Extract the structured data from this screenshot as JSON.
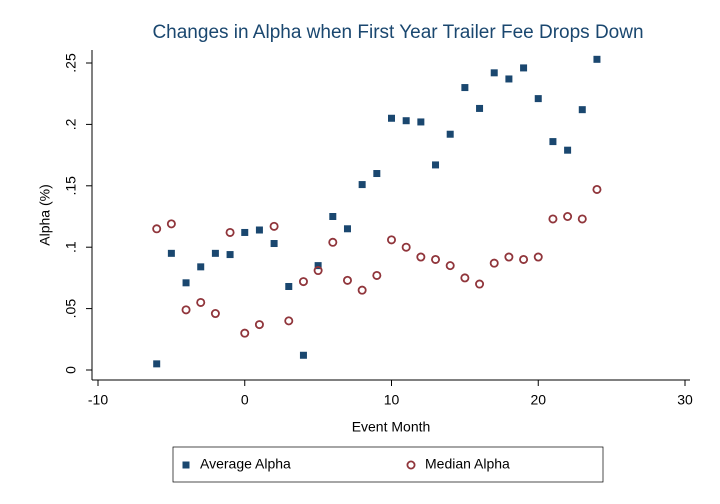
{
  "chart_data": {
    "type": "scatter",
    "title": "Changes in Alpha when First Year Trailer Fee Drops Down",
    "x_label": "Event  Month",
    "y_label": "Alpha (%)",
    "xlim": [
      -10,
      30
    ],
    "xticks": [
      -10,
      0,
      10,
      20,
      30
    ],
    "ylim": [
      0,
      0.25
    ],
    "yticks": [
      0,
      {
        "value": 0.05,
        "label": ".05"
      },
      {
        "value": 0.1,
        "label": ".1"
      },
      {
        "value": 0.15,
        "label": ".15"
      },
      {
        "value": 0.2,
        "label": ".2"
      },
      {
        "value": 0.25,
        "label": ".25"
      }
    ],
    "legend": "bottom",
    "x": [
      -6,
      -5,
      -4,
      -3,
      -2,
      -1,
      0,
      1,
      2,
      3,
      4,
      5,
      6,
      7,
      8,
      9,
      10,
      11,
      12,
      13,
      14,
      15,
      16,
      17,
      18,
      19,
      20,
      21,
      22,
      23,
      24
    ],
    "series": [
      {
        "name": "Average Alpha",
        "color": "#1a476f",
        "marker": "square",
        "values": [
          0.005,
          0.095,
          0.071,
          0.084,
          0.095,
          0.094,
          0.112,
          0.114,
          0.103,
          0.068,
          0.012,
          0.085,
          0.125,
          0.115,
          0.151,
          0.16,
          0.205,
          0.203,
          0.202,
          0.167,
          0.192,
          0.23,
          0.213,
          0.242,
          0.237,
          0.246,
          0.221,
          0.186,
          0.179,
          0.212,
          0.253
        ]
      },
      {
        "name": "Median Alpha",
        "color": "#90353b",
        "marker": "hollow-circle",
        "values": [
          0.115,
          0.119,
          0.049,
          0.055,
          0.046,
          0.112,
          0.03,
          0.037,
          0.117,
          0.04,
          0.072,
          0.081,
          0.104,
          0.073,
          0.065,
          0.077,
          0.106,
          0.1,
          0.092,
          0.09,
          0.085,
          0.075,
          0.07,
          0.087,
          0.092,
          0.09,
          0.092,
          0.123,
          0.125,
          0.123,
          0.147
        ]
      }
    ]
  }
}
